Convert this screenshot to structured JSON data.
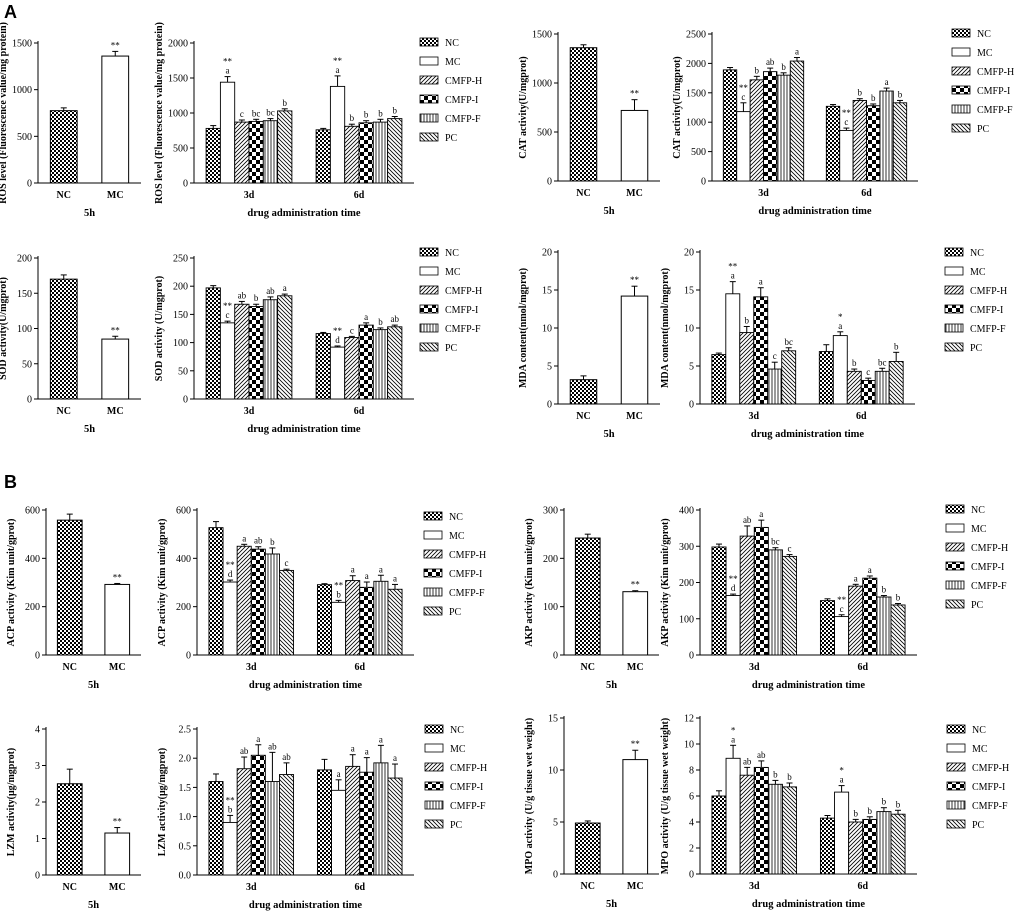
{
  "panel_labels": [
    "A",
    "B"
  ],
  "common": {
    "group_x_label": "drug administration time",
    "single_x_label": "5h",
    "time_categories": [
      "3d",
      "6d"
    ],
    "single_categories": [
      "NC",
      "MC"
    ],
    "legend_entries": [
      "NC",
      "MC",
      "CMFP-H",
      "CMFP-I",
      "CMFP-F",
      "PC"
    ],
    "colors": {
      "ink": "#000000",
      "background": "#ffffff"
    }
  },
  "chart_data": [
    {
      "id": "ros-5h",
      "type": "bar",
      "title": "",
      "xlabel": "5h",
      "ylabel": "ROS level (Fluorescence value/mg protein)",
      "categories": [
        "NC",
        "MC"
      ],
      "values": [
        775,
        1360
      ],
      "errors": [
        30,
        50
      ],
      "annotations": [
        "",
        "**"
      ],
      "ylim": [
        0,
        1500
      ],
      "yticks": [
        0,
        500,
        1000,
        1500
      ]
    },
    {
      "id": "ros-time",
      "type": "bar",
      "title": "",
      "xlabel": "drug administration time",
      "ylabel": "ROS level (Fluorescence value/mg protein)",
      "categories": [
        "3d",
        "6d"
      ],
      "series": [
        {
          "name": "NC",
          "values": [
            780,
            760
          ],
          "errors": [
            40,
            20
          ],
          "annotations": [
            "",
            ""
          ]
        },
        {
          "name": "MC",
          "values": [
            1440,
            1380
          ],
          "errors": [
            80,
            150
          ],
          "annotations": [
            "**\na",
            "**\na"
          ]
        },
        {
          "name": "CMFP-H",
          "values": [
            870,
            810
          ],
          "errors": [
            30,
            30
          ],
          "annotations": [
            "c",
            "b"
          ]
        },
        {
          "name": "CMFP-I",
          "values": [
            880,
            860
          ],
          "errors": [
            30,
            30
          ],
          "annotations": [
            "bc",
            "b"
          ]
        },
        {
          "name": "CMFP-F",
          "values": [
            890,
            870
          ],
          "errors": [
            30,
            40
          ],
          "annotations": [
            "bc",
            "b"
          ]
        },
        {
          "name": "PC",
          "values": [
            1030,
            920
          ],
          "errors": [
            30,
            30
          ],
          "annotations": [
            "b",
            "b"
          ]
        }
      ],
      "ylim": [
        0,
        2000
      ],
      "yticks": [
        0,
        500,
        1000,
        1500,
        2000
      ]
    },
    {
      "id": "cat-5h",
      "type": "bar",
      "title": "",
      "xlabel": "5h",
      "ylabel": "CAT activity(U/mgprot)",
      "categories": [
        "NC",
        "MC"
      ],
      "values": [
        1360,
        720
      ],
      "errors": [
        30,
        110
      ],
      "annotations": [
        "",
        "**"
      ],
      "ylim": [
        0,
        1500
      ],
      "yticks": [
        0,
        500,
        1000,
        1500
      ]
    },
    {
      "id": "cat-time",
      "type": "bar",
      "title": "",
      "xlabel": "drug administration time",
      "ylabel": "CAT activity(U/mgprot)",
      "categories": [
        "3d",
        "6d"
      ],
      "series": [
        {
          "name": "NC",
          "values": [
            1890,
            1270
          ],
          "errors": [
            40,
            30
          ],
          "annotations": [
            "",
            ""
          ]
        },
        {
          "name": "MC",
          "values": [
            1180,
            860
          ],
          "errors": [
            150,
            40
          ],
          "annotations": [
            "**\nc",
            "**\nc"
          ]
        },
        {
          "name": "CMFP-H",
          "values": [
            1720,
            1370
          ],
          "errors": [
            60,
            30
          ],
          "annotations": [
            "b",
            "b"
          ]
        },
        {
          "name": "CMFP-I",
          "values": [
            1860,
            1280
          ],
          "errors": [
            60,
            30
          ],
          "annotations": [
            "ab",
            "b"
          ]
        },
        {
          "name": "CMFP-F",
          "values": [
            1800,
            1530
          ],
          "errors": [
            40,
            50
          ],
          "annotations": [
            "b",
            "a"
          ]
        },
        {
          "name": "PC",
          "values": [
            2040,
            1330
          ],
          "errors": [
            60,
            40
          ],
          "annotations": [
            "a",
            "b"
          ]
        }
      ],
      "ylim": [
        0,
        2500
      ],
      "yticks": [
        0,
        500,
        1000,
        1500,
        2000,
        2500
      ]
    },
    {
      "id": "sod-5h",
      "type": "bar",
      "title": "",
      "xlabel": "5h",
      "ylabel": "SOD activity(U/mgprot)",
      "categories": [
        "NC",
        "MC"
      ],
      "values": [
        170,
        85
      ],
      "errors": [
        6,
        4
      ],
      "annotations": [
        "",
        "**"
      ],
      "ylim": [
        0,
        200
      ],
      "yticks": [
        0,
        50,
        100,
        150,
        200
      ]
    },
    {
      "id": "sod-time",
      "type": "bar",
      "title": "",
      "xlabel": "drug administration time",
      "ylabel": "SOD activity (U/mgprot)",
      "categories": [
        "3d",
        "6d"
      ],
      "series": [
        {
          "name": "NC",
          "values": [
            197,
            116
          ],
          "errors": [
            4,
            2
          ],
          "annotations": [
            "",
            ""
          ]
        },
        {
          "name": "MC",
          "values": [
            135,
            92
          ],
          "errors": [
            3,
            2
          ],
          "annotations": [
            "**\nc",
            "**\nd"
          ]
        },
        {
          "name": "CMFP-H",
          "values": [
            168,
            109
          ],
          "errors": [
            5,
            2
          ],
          "annotations": [
            "ab",
            "c"
          ]
        },
        {
          "name": "CMFP-I",
          "values": [
            164,
            131
          ],
          "errors": [
            4,
            4
          ],
          "annotations": [
            "b",
            "a"
          ]
        },
        {
          "name": "CMFP-F",
          "values": [
            176,
            123
          ],
          "errors": [
            5,
            3
          ],
          "annotations": [
            "ab",
            "b"
          ]
        },
        {
          "name": "PC",
          "values": [
            183,
            128
          ],
          "errors": [
            3,
            3
          ],
          "annotations": [
            "a",
            "ab"
          ]
        }
      ],
      "ylim": [
        0,
        250
      ],
      "yticks": [
        0,
        50,
        100,
        150,
        200,
        250
      ]
    },
    {
      "id": "mda-5h",
      "type": "bar",
      "title": "",
      "xlabel": "5h",
      "ylabel": "MDA content(nmol/mgprot)",
      "categories": [
        "NC",
        "MC"
      ],
      "values": [
        3.2,
        14.2
      ],
      "errors": [
        0.5,
        1.3
      ],
      "annotations": [
        "",
        "**"
      ],
      "ylim": [
        0,
        20
      ],
      "yticks": [
        0,
        5,
        10,
        15,
        20
      ]
    },
    {
      "id": "mda-time",
      "type": "bar",
      "title": "",
      "xlabel": "drug administration time",
      "ylabel": "MDA content(nmol/mgprot)",
      "categories": [
        "3d",
        "6d"
      ],
      "series": [
        {
          "name": "NC",
          "values": [
            6.5,
            6.9
          ],
          "errors": [
            0.2,
            0.9
          ],
          "annotations": [
            "",
            ""
          ]
        },
        {
          "name": "MC",
          "values": [
            14.5,
            9.0
          ],
          "errors": [
            1.6,
            0.5
          ],
          "annotations": [
            "**\na",
            "*\na"
          ]
        },
        {
          "name": "CMFP-H",
          "values": [
            9.4,
            4.3
          ],
          "errors": [
            0.8,
            0.3
          ],
          "annotations": [
            "b",
            "b"
          ]
        },
        {
          "name": "CMFP-I",
          "values": [
            14.1,
            3.1
          ],
          "errors": [
            1.2,
            0.3
          ],
          "annotations": [
            "a",
            "c"
          ]
        },
        {
          "name": "CMFP-F",
          "values": [
            4.6,
            4.3
          ],
          "errors": [
            0.9,
            0.4
          ],
          "annotations": [
            "c",
            "bc"
          ]
        },
        {
          "name": "PC",
          "values": [
            7.0,
            5.6
          ],
          "errors": [
            0.4,
            1.2
          ],
          "annotations": [
            "bc",
            "b"
          ]
        }
      ],
      "ylim": [
        0,
        20
      ],
      "yticks": [
        0,
        5,
        10,
        15,
        20
      ]
    },
    {
      "id": "acp-5h",
      "type": "bar",
      "title": "",
      "xlabel": "5h",
      "ylabel": "ACP activity (Kim unit/gprot)",
      "categories": [
        "NC",
        "MC"
      ],
      "values": [
        558,
        292
      ],
      "errors": [
        25,
        4
      ],
      "annotations": [
        "",
        "**"
      ],
      "ylim": [
        0,
        600
      ],
      "yticks": [
        0,
        200,
        400,
        600
      ]
    },
    {
      "id": "acp-time",
      "type": "bar",
      "title": "",
      "xlabel": "drug administration time",
      "ylabel": "ACP activity (Kim unit/gprot)",
      "categories": [
        "3d",
        "6d"
      ],
      "series": [
        {
          "name": "NC",
          "values": [
            527,
            291
          ],
          "errors": [
            25,
            4
          ],
          "annotations": [
            "",
            ""
          ]
        },
        {
          "name": "MC",
          "values": [
            302,
            218
          ],
          "errors": [
            8,
            8
          ],
          "annotations": [
            "**\nd",
            "**\nb"
          ]
        },
        {
          "name": "CMFP-H",
          "values": [
            450,
            308
          ],
          "errors": [
            8,
            20
          ],
          "annotations": [
            "a",
            "a"
          ]
        },
        {
          "name": "CMFP-I",
          "values": [
            438,
            280
          ],
          "errors": [
            10,
            22
          ],
          "annotations": [
            "ab",
            "a"
          ]
        },
        {
          "name": "CMFP-F",
          "values": [
            418,
            305
          ],
          "errors": [
            25,
            25
          ],
          "annotations": [
            "b",
            "a"
          ]
        },
        {
          "name": "PC",
          "values": [
            350,
            272
          ],
          "errors": [
            5,
            20
          ],
          "annotations": [
            "c",
            "a"
          ]
        }
      ],
      "ylim": [
        0,
        600
      ],
      "yticks": [
        0,
        200,
        400,
        600
      ]
    },
    {
      "id": "akp-5h",
      "type": "bar",
      "title": "",
      "xlabel": "5h",
      "ylabel": "AKP activity (Kim unit/gprot)",
      "categories": [
        "NC",
        "MC"
      ],
      "values": [
        242,
        131
      ],
      "errors": [
        8,
        2
      ],
      "annotations": [
        "",
        "**"
      ],
      "ylim": [
        0,
        300
      ],
      "yticks": [
        0,
        100,
        200,
        300
      ]
    },
    {
      "id": "akp-time",
      "type": "bar",
      "title": "",
      "xlabel": "drug administration time",
      "ylabel": "AKP activity (Kim unit/gprot)",
      "categories": [
        "3d",
        "6d"
      ],
      "series": [
        {
          "name": "NC",
          "values": [
            298,
            150
          ],
          "errors": [
            8,
            5
          ],
          "annotations": [
            "",
            ""
          ]
        },
        {
          "name": "MC",
          "values": [
            164,
            106
          ],
          "errors": [
            4,
            5
          ],
          "annotations": [
            "**\nd",
            "**\nc"
          ]
        },
        {
          "name": "CMFP-H",
          "values": [
            328,
            190
          ],
          "errors": [
            28,
            5
          ],
          "annotations": [
            "ab",
            "a"
          ]
        },
        {
          "name": "CMFP-I",
          "values": [
            352,
            212
          ],
          "errors": [
            20,
            6
          ],
          "annotations": [
            "a",
            "a"
          ]
        },
        {
          "name": "CMFP-F",
          "values": [
            290,
            160
          ],
          "errors": [
            6,
            4
          ],
          "annotations": [
            "bc",
            "b"
          ]
        },
        {
          "name": "PC",
          "values": [
            272,
            138
          ],
          "errors": [
            5,
            4
          ],
          "annotations": [
            "c",
            "b"
          ]
        }
      ],
      "ylim": [
        0,
        400
      ],
      "yticks": [
        0,
        100,
        200,
        300,
        400
      ]
    },
    {
      "id": "lzm-5h",
      "type": "bar",
      "title": "",
      "xlabel": "5h",
      "ylabel": "LZM activity(μg/mgprot)",
      "categories": [
        "NC",
        "MC"
      ],
      "values": [
        2.5,
        1.15
      ],
      "errors": [
        0.4,
        0.15
      ],
      "annotations": [
        "",
        "**"
      ],
      "ylim": [
        0,
        4
      ],
      "yticks": [
        0,
        1,
        2,
        3,
        4
      ]
    },
    {
      "id": "lzm-time",
      "type": "bar",
      "title": "",
      "xlabel": "drug administration time",
      "ylabel": "LZM activity(μg/mgprot)",
      "categories": [
        "3d",
        "6d"
      ],
      "series": [
        {
          "name": "NC",
          "values": [
            1.6,
            1.8
          ],
          "errors": [
            0.13,
            0.18
          ],
          "annotations": [
            "",
            ""
          ]
        },
        {
          "name": "MC",
          "values": [
            0.9,
            1.45
          ],
          "errors": [
            0.12,
            0.18
          ],
          "annotations": [
            "**\nb",
            "a"
          ]
        },
        {
          "name": "CMFP-H",
          "values": [
            1.82,
            1.86
          ],
          "errors": [
            0.2,
            0.2
          ],
          "annotations": [
            "ab",
            "a"
          ]
        },
        {
          "name": "CMFP-I",
          "values": [
            2.05,
            1.76
          ],
          "errors": [
            0.18,
            0.25
          ],
          "annotations": [
            "a",
            "a"
          ]
        },
        {
          "name": "CMFP-F",
          "values": [
            1.6,
            1.92
          ],
          "errors": [
            0.5,
            0.3
          ],
          "annotations": [
            "ab",
            "a"
          ]
        },
        {
          "name": "PC",
          "values": [
            1.72,
            1.66
          ],
          "errors": [
            0.2,
            0.24
          ],
          "annotations": [
            "ab",
            "a"
          ]
        }
      ],
      "ylim": [
        0,
        2.5
      ],
      "yticks": [
        0.0,
        0.5,
        1.0,
        1.5,
        2.0,
        2.5
      ]
    },
    {
      "id": "mpo-5h",
      "type": "bar",
      "title": "",
      "xlabel": "5h",
      "ylabel": "MPO activity (U/g tissue wet weight)",
      "categories": [
        "NC",
        "MC"
      ],
      "values": [
        4.9,
        11.0
      ],
      "errors": [
        0.2,
        0.9
      ],
      "annotations": [
        "",
        "**"
      ],
      "ylim": [
        0,
        15
      ],
      "yticks": [
        0,
        5,
        10,
        15
      ]
    },
    {
      "id": "mpo-time",
      "type": "bar",
      "title": "",
      "xlabel": "drug administration time",
      "ylabel": "MPO activity (U/g tissue wet weight)",
      "categories": [
        "3d",
        "6d"
      ],
      "series": [
        {
          "name": "NC",
          "values": [
            6.0,
            4.3
          ],
          "errors": [
            0.4,
            0.2
          ],
          "annotations": [
            "",
            ""
          ]
        },
        {
          "name": "MC",
          "values": [
            8.9,
            6.3
          ],
          "errors": [
            1.0,
            0.5
          ],
          "annotations": [
            "*\na",
            "*\na"
          ]
        },
        {
          "name": "CMFP-H",
          "values": [
            7.6,
            4.0
          ],
          "errors": [
            0.6,
            0.2
          ],
          "annotations": [
            "ab",
            "b"
          ]
        },
        {
          "name": "CMFP-I",
          "values": [
            8.2,
            4.2
          ],
          "errors": [
            0.5,
            0.2
          ],
          "annotations": [
            "ab",
            "b"
          ]
        },
        {
          "name": "CMFP-F",
          "values": [
            6.9,
            4.8
          ],
          "errors": [
            0.3,
            0.3
          ],
          "annotations": [
            "b",
            "b"
          ]
        },
        {
          "name": "PC",
          "values": [
            6.7,
            4.6
          ],
          "errors": [
            0.3,
            0.3
          ],
          "annotations": [
            "b",
            "b"
          ]
        }
      ],
      "ylim": [
        0,
        12
      ],
      "yticks": [
        0,
        2,
        4,
        6,
        8,
        10,
        12
      ]
    }
  ]
}
